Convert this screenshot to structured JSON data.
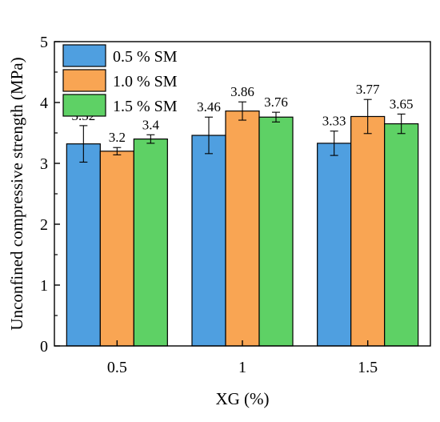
{
  "chart_data": {
    "type": "bar",
    "title": "",
    "xlabel": "XG (%)",
    "ylabel": "Unconfined compressive strength (MPa)",
    "categories": [
      "0.5",
      "1",
      "1.5"
    ],
    "ylim": [
      0,
      5
    ],
    "yticks": [
      "0",
      "1",
      "2",
      "3",
      "4",
      "5"
    ],
    "grid": false,
    "legend_position": "top-left",
    "series": [
      {
        "name": "0.5 % SM",
        "color": "#4f9fe0",
        "values": [
          3.32,
          3.46,
          3.33
        ],
        "errors": [
          0.3,
          0.3,
          0.2
        ],
        "labels": [
          "3.32",
          "3.46",
          "3.33"
        ]
      },
      {
        "name": "1.0 % SM",
        "color": "#f9a553",
        "values": [
          3.2,
          3.86,
          3.77
        ],
        "errors": [
          0.06,
          0.15,
          0.28
        ],
        "labels": [
          "3.2",
          "3.86",
          "3.77"
        ]
      },
      {
        "name": "1.5 % SM",
        "color": "#5ed165",
        "values": [
          3.4,
          3.76,
          3.65
        ],
        "errors": [
          0.07,
          0.08,
          0.16
        ],
        "labels": [
          "3.4",
          "3.76",
          "3.65"
        ]
      }
    ]
  }
}
